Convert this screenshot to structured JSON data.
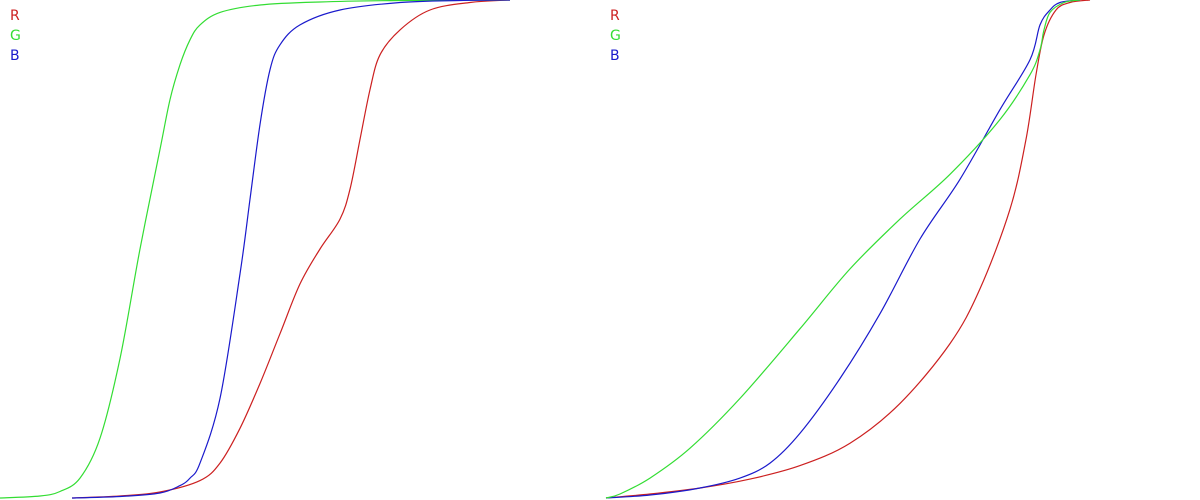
{
  "chart_data": [
    {
      "type": "line",
      "title": "",
      "xlabel": "",
      "ylabel": "",
      "xlim": [
        0,
        255
      ],
      "ylim": [
        0,
        1
      ],
      "grid": false,
      "legend_position": "top-left",
      "series": [
        {
          "name": "R",
          "color": "#cc2020",
          "x": [
            36,
            60,
            80,
            100,
            110,
            120,
            130,
            140,
            150,
            160,
            170,
            175,
            180,
            185,
            190,
            200,
            215,
            235,
            255
          ],
          "y": [
            0,
            0.004,
            0.012,
            0.035,
            0.07,
            0.14,
            0.23,
            0.33,
            0.43,
            0.5,
            0.56,
            0.62,
            0.72,
            0.82,
            0.89,
            0.94,
            0.98,
            0.995,
            1
          ]
        },
        {
          "name": "G",
          "color": "#33dd33",
          "x": [
            0,
            20,
            30,
            40,
            50,
            60,
            70,
            80,
            85,
            90,
            95,
            100,
            110,
            130,
            160,
            200,
            255
          ],
          "y": [
            0,
            0.004,
            0.013,
            0.04,
            0.12,
            0.28,
            0.5,
            0.7,
            0.8,
            0.87,
            0.92,
            0.95,
            0.975,
            0.99,
            0.996,
            0.999,
            1
          ]
        },
        {
          "name": "B",
          "color": "#1a1acc",
          "x": [
            36,
            60,
            80,
            90,
            95,
            100,
            110,
            120,
            125,
            130,
            135,
            140,
            150,
            170,
            200,
            230,
            255
          ],
          "y": [
            0,
            0.003,
            0.01,
            0.025,
            0.04,
            0.07,
            0.2,
            0.45,
            0.6,
            0.75,
            0.86,
            0.91,
            0.95,
            0.98,
            0.995,
            0.999,
            1
          ]
        }
      ]
    },
    {
      "type": "line",
      "title": "",
      "xlabel": "",
      "ylabel": "",
      "xlim": [
        0,
        255
      ],
      "ylim": [
        0,
        1
      ],
      "grid": false,
      "legend_position": "top-left",
      "series": [
        {
          "name": "R",
          "color": "#cc2020",
          "x": [
            3,
            25,
            50,
            75,
            100,
            125,
            150,
            175,
            190,
            205,
            213,
            218,
            222,
            228,
            235,
            245
          ],
          "y": [
            0,
            0.008,
            0.02,
            0.038,
            0.065,
            0.11,
            0.19,
            0.31,
            0.42,
            0.58,
            0.72,
            0.85,
            0.93,
            0.98,
            0.995,
            1
          ]
        },
        {
          "name": "B",
          "color": "#1a1acc",
          "x": [
            3,
            25,
            50,
            70,
            85,
            100,
            120,
            140,
            160,
            180,
            200,
            215,
            220,
            225,
            230,
            240
          ],
          "y": [
            0,
            0.006,
            0.02,
            0.04,
            0.07,
            0.13,
            0.24,
            0.37,
            0.52,
            0.64,
            0.78,
            0.88,
            0.95,
            0.98,
            0.995,
            1
          ]
        },
        {
          "name": "G",
          "color": "#33dd33",
          "x": [
            3,
            10,
            25,
            45,
            70,
            100,
            125,
            150,
            175,
            200,
            215,
            220,
            222,
            225,
            232,
            240
          ],
          "y": [
            0,
            0.008,
            0.04,
            0.1,
            0.2,
            0.34,
            0.46,
            0.56,
            0.65,
            0.76,
            0.85,
            0.9,
            0.94,
            0.975,
            0.995,
            1
          ]
        }
      ]
    }
  ]
}
